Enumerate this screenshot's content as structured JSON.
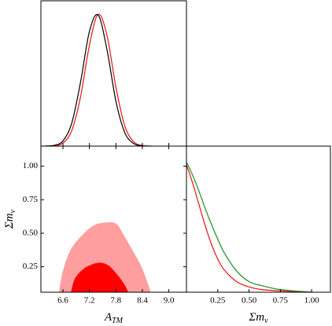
{
  "chart_data": [
    {
      "type": "line",
      "x": [
        6.2,
        6.4,
        6.6,
        6.8,
        7.0,
        7.2,
        7.4,
        7.6,
        7.8,
        8.0,
        8.2,
        8.4,
        8.6
      ],
      "series": [
        {
          "color": "#ee1111",
          "values": [
            0.0,
            0.003,
            0.024,
            0.118,
            0.375,
            0.764,
            0.998,
            0.835,
            0.448,
            0.154,
            0.034,
            0.005,
            0.0
          ]
        },
        {
          "color": "#000000",
          "values": [
            0.001,
            0.006,
            0.04,
            0.175,
            0.487,
            0.868,
            0.991,
            0.726,
            0.341,
            0.103,
            0.02,
            0.002,
            0.0
          ]
        }
      ],
      "xlim": [
        6.1,
        9.4
      ],
      "ylim": [
        0,
        1.1
      ],
      "xticks": [
        6.6,
        7.2,
        7.8,
        8.4,
        9.0
      ]
    },
    {
      "type": "contour",
      "contours": [
        {
          "color": "#ff9e9e",
          "x": [
            6.51,
            6.6,
            6.78,
            7.05,
            7.31,
            7.58,
            7.81,
            7.99,
            8.2,
            8.38,
            8.52,
            8.59
          ],
          "y": [
            0.06,
            0.22,
            0.38,
            0.49,
            0.56,
            0.58,
            0.57,
            0.48,
            0.36,
            0.25,
            0.13,
            0.06
          ]
        },
        {
          "color": "#ff0000",
          "x": [
            6.78,
            6.87,
            7.05,
            7.28,
            7.46,
            7.63,
            7.81,
            7.99,
            8.08
          ],
          "y": [
            0.06,
            0.16,
            0.23,
            0.27,
            0.28,
            0.26,
            0.2,
            0.12,
            0.06
          ]
        }
      ],
      "xlim": [
        6.1,
        9.4
      ],
      "ylim": [
        0.06,
        1.15
      ],
      "xticks": [
        6.6,
        7.2,
        7.8,
        8.4,
        {
          "value": 9.0,
          "label": "9.0"
        }
      ],
      "yticks": [
        0.25,
        {
          "value": 0.5,
          "label": "0.50"
        },
        0.75,
        {
          "value": 1.0,
          "label": "1.00"
        }
      ],
      "xlabel": {
        "main": "A",
        "sub": "TM"
      },
      "ylabel": {
        "main": "Σm",
        "sub": "ν"
      }
    },
    {
      "type": "line",
      "x": [
        0,
        0.05,
        0.1,
        0.15,
        0.2,
        0.25,
        0.3,
        0.4,
        0.5,
        0.6,
        0.75,
        1.0
      ],
      "series": [
        {
          "color": "#ee1111",
          "values": [
            0.96,
            0.82,
            0.66,
            0.5,
            0.36,
            0.25,
            0.17,
            0.08,
            0.04,
            0.02,
            0.01,
            0.0
          ]
        },
        {
          "color": "#1f8c1f",
          "values": [
            0.98,
            0.88,
            0.76,
            0.63,
            0.51,
            0.4,
            0.3,
            0.16,
            0.08,
            0.05,
            0.02,
            0.0
          ]
        }
      ],
      "xlim": [
        0,
        1.15
      ],
      "ylim": [
        0,
        1.1
      ],
      "xticks": [
        0.25,
        {
          "value": 0.5,
          "label": "0.50"
        },
        0.75,
        {
          "value": 1.0,
          "label": "1.00"
        }
      ],
      "xlabel": {
        "main": "Σm",
        "sub": "ν"
      }
    }
  ]
}
